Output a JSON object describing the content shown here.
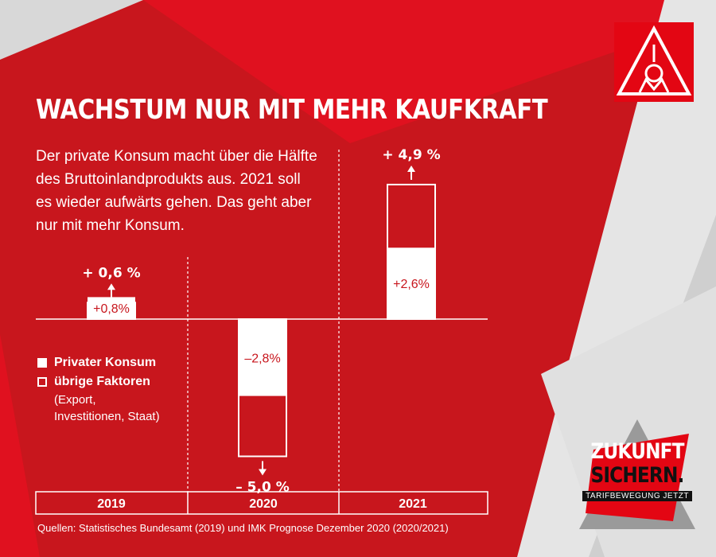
{
  "title": "WACHSTUM NUR MIT MEHR KAUFKRAFT",
  "intro": "Der private Konsum macht über die Hälfte des Bruttoinlandprodukts aus. 2021 soll es wieder aufwärts gehen. Das geht aber nur mit mehr Konsum.",
  "logo": {
    "letters": [
      "I",
      "G",
      "M"
    ]
  },
  "legend": {
    "private": "Privater Konsum",
    "other": "übrige Faktoren",
    "other_note": "(Export, Investitionen, Staat)"
  },
  "chart_data": {
    "type": "bar",
    "categories": [
      "2019",
      "2020",
      "2021"
    ],
    "series": [
      {
        "name": "Privater Konsum",
        "values": [
          0.8,
          -2.8,
          2.6
        ],
        "labels": [
          "+0,8%",
          "–2,8%",
          "+2,6%"
        ]
      },
      {
        "name": "übrige Faktoren",
        "values": [
          -0.2,
          -2.2,
          2.3
        ]
      }
    ],
    "totals": [
      0.6,
      -5.0,
      4.9
    ],
    "total_labels": [
      "+ 0,6 %",
      "– 5,0 %",
      "+ 4,9 %"
    ],
    "ylim": [
      -5,
      4.9
    ]
  },
  "badge": {
    "line1": "ZUKUNFT",
    "line2": "SICHERN.",
    "sub": "TARIFBEWEGUNG JETZT"
  },
  "colors": {
    "red": "#c8161d",
    "white": "#ffffff",
    "gray": "#d9d9d9"
  },
  "source": "Quellen: Statistisches Bundesamt (2019) und IMK Prognose Dezember 2020 (2020/2021)"
}
